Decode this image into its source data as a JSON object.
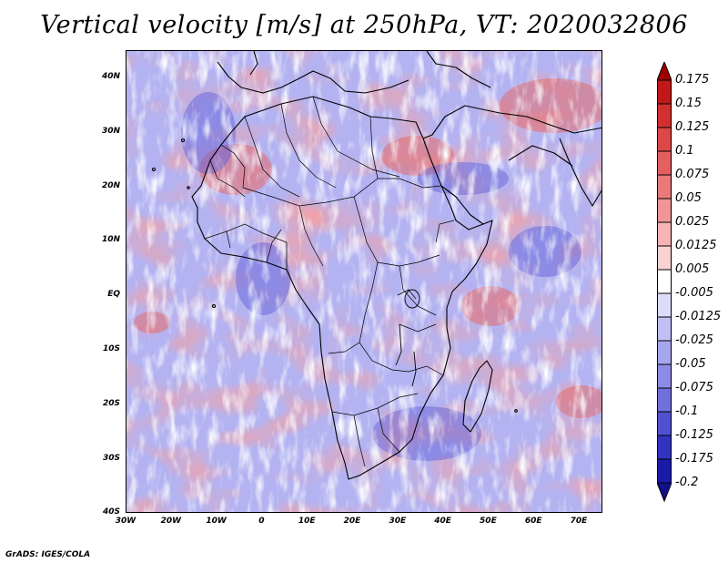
{
  "title": "Vertical velocity [m/s] at 250hPa, VT: 2020032806",
  "footer": "GrADS: IGES/COLA",
  "map": {
    "lat_labels": [
      "40N",
      "30N",
      "20N",
      "10N",
      "EQ",
      "10S",
      "20S",
      "30S",
      "40S"
    ],
    "lon_labels": [
      "30W",
      "20W",
      "10W",
      "0",
      "10E",
      "20E",
      "30E",
      "40E",
      "50E",
      "60E",
      "70E"
    ]
  },
  "colorbar": {
    "labels": [
      "0.175",
      "0.15",
      "0.125",
      "0.1",
      "0.075",
      "0.05",
      "0.025",
      "0.0125",
      "0.005",
      "-0.005",
      "-0.0125",
      "-0.025",
      "-0.05",
      "-0.075",
      "-0.1",
      "-0.125",
      "-0.175",
      "-0.2"
    ],
    "colors": [
      "#c01818",
      "#d23030",
      "#dc4848",
      "#e46060",
      "#ea7a7a",
      "#f09696",
      "#f6b4b4",
      "#fad2d2",
      "#ffffff",
      "#dcdcfa",
      "#c0c0f4",
      "#a6a6ee",
      "#8c8ce6",
      "#7070dc",
      "#5050d0",
      "#3232c0",
      "#1a1aa8"
    ],
    "top_arrow_color": "#a00000",
    "bottom_arrow_color": "#10108a"
  }
}
